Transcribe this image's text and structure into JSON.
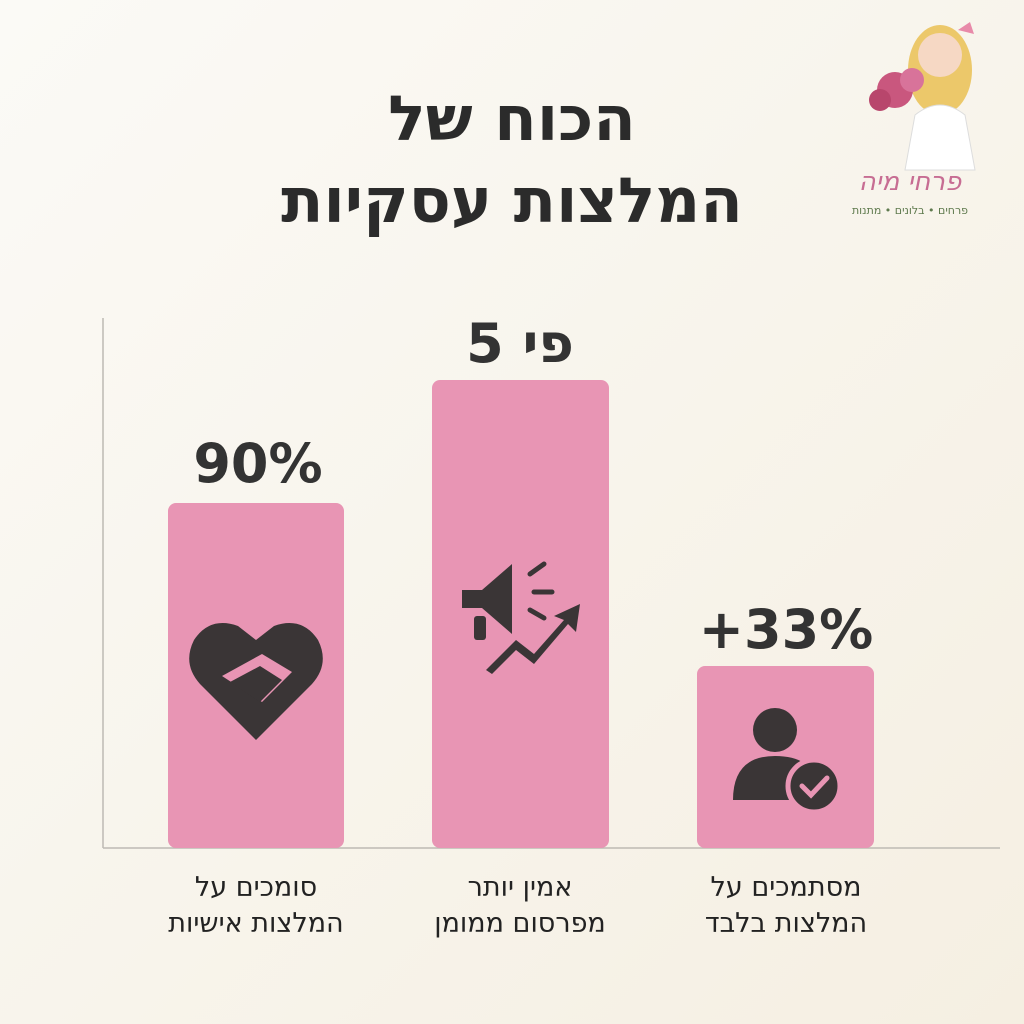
{
  "header": {
    "title_lines": [
      "הכוח של",
      "המלצות עסקיות"
    ]
  },
  "logo": {
    "name": "פרחי מיה",
    "tagline": "פרחים • בלונים • מתנות"
  },
  "items": [
    {
      "stat": "90%",
      "caption_lines": [
        "סומכים על",
        "המלצות אישיות"
      ]
    },
    {
      "stat": "פי 5",
      "caption_lines": [
        "אמין יותר",
        "מפרסום ממומן"
      ]
    },
    {
      "stat": "+33%",
      "caption_lines": [
        "מסתמכים על",
        "המלצות בלבד"
      ]
    }
  ]
}
